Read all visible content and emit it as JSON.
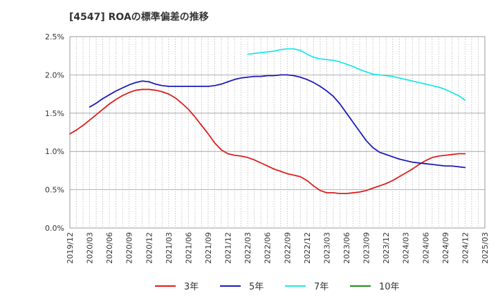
{
  "chart_data": {
    "type": "line",
    "title": "[4547]  ROAの標準偏差の推移",
    "xlabel": "",
    "ylabel": "",
    "ylim": [
      0,
      2.5
    ],
    "yticks": [
      "0.0%",
      "0.5%",
      "1.0%",
      "1.5%",
      "2.0%",
      "2.5%"
    ],
    "xticks": [
      "2019/12",
      "2020/03",
      "2020/06",
      "2020/09",
      "2020/12",
      "2021/03",
      "2021/06",
      "2021/09",
      "2021/12",
      "2022/03",
      "2022/06",
      "2022/09",
      "2022/12",
      "2023/03",
      "2023/06",
      "2023/09",
      "2023/12",
      "2024/03",
      "2024/06",
      "2024/09",
      "2024/12",
      "2025/03"
    ],
    "grid": true,
    "legend_position": "bottom",
    "series": [
      {
        "name": "3年",
        "color": "#dd1c1c",
        "points": [
          [
            "2019/12",
            1.23
          ],
          [
            "2020/01",
            1.28
          ],
          [
            "2020/02",
            1.34
          ],
          [
            "2020/03",
            1.41
          ],
          [
            "2020/04",
            1.48
          ],
          [
            "2020/05",
            1.55
          ],
          [
            "2020/06",
            1.62
          ],
          [
            "2020/07",
            1.68
          ],
          [
            "2020/08",
            1.73
          ],
          [
            "2020/09",
            1.77
          ],
          [
            "2020/10",
            1.8
          ],
          [
            "2020/11",
            1.81
          ],
          [
            "2020/12",
            1.81
          ],
          [
            "2021/01",
            1.8
          ],
          [
            "2021/02",
            1.78
          ],
          [
            "2021/03",
            1.75
          ],
          [
            "2021/04",
            1.7
          ],
          [
            "2021/05",
            1.63
          ],
          [
            "2021/06",
            1.55
          ],
          [
            "2021/07",
            1.45
          ],
          [
            "2021/08",
            1.34
          ],
          [
            "2021/09",
            1.23
          ],
          [
            "2021/10",
            1.11
          ],
          [
            "2021/11",
            1.02
          ],
          [
            "2021/12",
            0.97
          ],
          [
            "2022/01",
            0.95
          ],
          [
            "2022/02",
            0.94
          ],
          [
            "2022/03",
            0.92
          ],
          [
            "2022/04",
            0.89
          ],
          [
            "2022/05",
            0.85
          ],
          [
            "2022/06",
            0.81
          ],
          [
            "2022/07",
            0.77
          ],
          [
            "2022/08",
            0.74
          ],
          [
            "2022/09",
            0.71
          ],
          [
            "2022/10",
            0.69
          ],
          [
            "2022/11",
            0.67
          ],
          [
            "2022/12",
            0.62
          ],
          [
            "2023/01",
            0.55
          ],
          [
            "2023/02",
            0.49
          ],
          [
            "2023/03",
            0.46
          ],
          [
            "2023/04",
            0.46
          ],
          [
            "2023/05",
            0.45
          ],
          [
            "2023/06",
            0.45
          ],
          [
            "2023/07",
            0.46
          ],
          [
            "2023/08",
            0.47
          ],
          [
            "2023/09",
            0.49
          ],
          [
            "2023/10",
            0.52
          ],
          [
            "2023/11",
            0.55
          ],
          [
            "2023/12",
            0.58
          ],
          [
            "2024/01",
            0.62
          ],
          [
            "2024/02",
            0.67
          ],
          [
            "2024/03",
            0.72
          ],
          [
            "2024/04",
            0.77
          ],
          [
            "2024/05",
            0.83
          ],
          [
            "2024/06",
            0.88
          ],
          [
            "2024/07",
            0.92
          ],
          [
            "2024/08",
            0.94
          ],
          [
            "2024/09",
            0.95
          ],
          [
            "2024/10",
            0.96
          ],
          [
            "2024/11",
            0.97
          ],
          [
            "2024/12",
            0.97
          ]
        ]
      },
      {
        "name": "5年",
        "color": "#1a1ab8",
        "points": [
          [
            "2020/03",
            1.58
          ],
          [
            "2020/04",
            1.63
          ],
          [
            "2020/05",
            1.69
          ],
          [
            "2020/06",
            1.74
          ],
          [
            "2020/07",
            1.79
          ],
          [
            "2020/08",
            1.83
          ],
          [
            "2020/09",
            1.87
          ],
          [
            "2020/10",
            1.9
          ],
          [
            "2020/11",
            1.92
          ],
          [
            "2020/12",
            1.91
          ],
          [
            "2021/01",
            1.88
          ],
          [
            "2021/02",
            1.86
          ],
          [
            "2021/03",
            1.85
          ],
          [
            "2021/04",
            1.85
          ],
          [
            "2021/05",
            1.85
          ],
          [
            "2021/06",
            1.85
          ],
          [
            "2021/07",
            1.85
          ],
          [
            "2021/08",
            1.85
          ],
          [
            "2021/09",
            1.85
          ],
          [
            "2021/10",
            1.86
          ],
          [
            "2021/11",
            1.88
          ],
          [
            "2021/12",
            1.91
          ],
          [
            "2022/01",
            1.94
          ],
          [
            "2022/02",
            1.96
          ],
          [
            "2022/03",
            1.97
          ],
          [
            "2022/04",
            1.98
          ],
          [
            "2022/05",
            1.98
          ],
          [
            "2022/06",
            1.99
          ],
          [
            "2022/07",
            1.99
          ],
          [
            "2022/08",
            2.0
          ],
          [
            "2022/09",
            2.0
          ],
          [
            "2022/10",
            1.99
          ],
          [
            "2022/11",
            1.97
          ],
          [
            "2022/12",
            1.94
          ],
          [
            "2023/01",
            1.9
          ],
          [
            "2023/02",
            1.85
          ],
          [
            "2023/03",
            1.79
          ],
          [
            "2023/04",
            1.72
          ],
          [
            "2023/05",
            1.62
          ],
          [
            "2023/06",
            1.5
          ],
          [
            "2023/07",
            1.38
          ],
          [
            "2023/08",
            1.26
          ],
          [
            "2023/09",
            1.14
          ],
          [
            "2023/10",
            1.05
          ],
          [
            "2023/11",
            0.99
          ],
          [
            "2023/12",
            0.96
          ],
          [
            "2024/01",
            0.93
          ],
          [
            "2024/02",
            0.9
          ],
          [
            "2024/03",
            0.88
          ],
          [
            "2024/04",
            0.86
          ],
          [
            "2024/05",
            0.85
          ],
          [
            "2024/06",
            0.84
          ],
          [
            "2024/07",
            0.83
          ],
          [
            "2024/08",
            0.82
          ],
          [
            "2024/09",
            0.81
          ],
          [
            "2024/10",
            0.81
          ],
          [
            "2024/11",
            0.8
          ],
          [
            "2024/12",
            0.79
          ]
        ]
      },
      {
        "name": "7年",
        "color": "#1ee6e6",
        "points": [
          [
            "2022/03",
            2.27
          ],
          [
            "2022/04",
            2.28
          ],
          [
            "2022/05",
            2.29
          ],
          [
            "2022/06",
            2.3
          ],
          [
            "2022/07",
            2.31
          ],
          [
            "2022/08",
            2.33
          ],
          [
            "2022/09",
            2.34
          ],
          [
            "2022/10",
            2.34
          ],
          [
            "2022/11",
            2.32
          ],
          [
            "2022/12",
            2.27
          ],
          [
            "2023/01",
            2.23
          ],
          [
            "2023/02",
            2.21
          ],
          [
            "2023/03",
            2.2
          ],
          [
            "2023/04",
            2.19
          ],
          [
            "2023/05",
            2.17
          ],
          [
            "2023/06",
            2.14
          ],
          [
            "2023/07",
            2.11
          ],
          [
            "2023/08",
            2.07
          ],
          [
            "2023/09",
            2.04
          ],
          [
            "2023/10",
            2.01
          ],
          [
            "2023/11",
            2.0
          ],
          [
            "2023/12",
            1.99
          ],
          [
            "2024/01",
            1.98
          ],
          [
            "2024/02",
            1.96
          ],
          [
            "2024/03",
            1.94
          ],
          [
            "2024/04",
            1.92
          ],
          [
            "2024/05",
            1.9
          ],
          [
            "2024/06",
            1.88
          ],
          [
            "2024/07",
            1.86
          ],
          [
            "2024/08",
            1.84
          ],
          [
            "2024/09",
            1.81
          ],
          [
            "2024/10",
            1.77
          ],
          [
            "2024/11",
            1.73
          ],
          [
            "2024/12",
            1.67
          ]
        ]
      },
      {
        "name": "10年",
        "color": "#1a8a1a",
        "points": []
      }
    ]
  }
}
